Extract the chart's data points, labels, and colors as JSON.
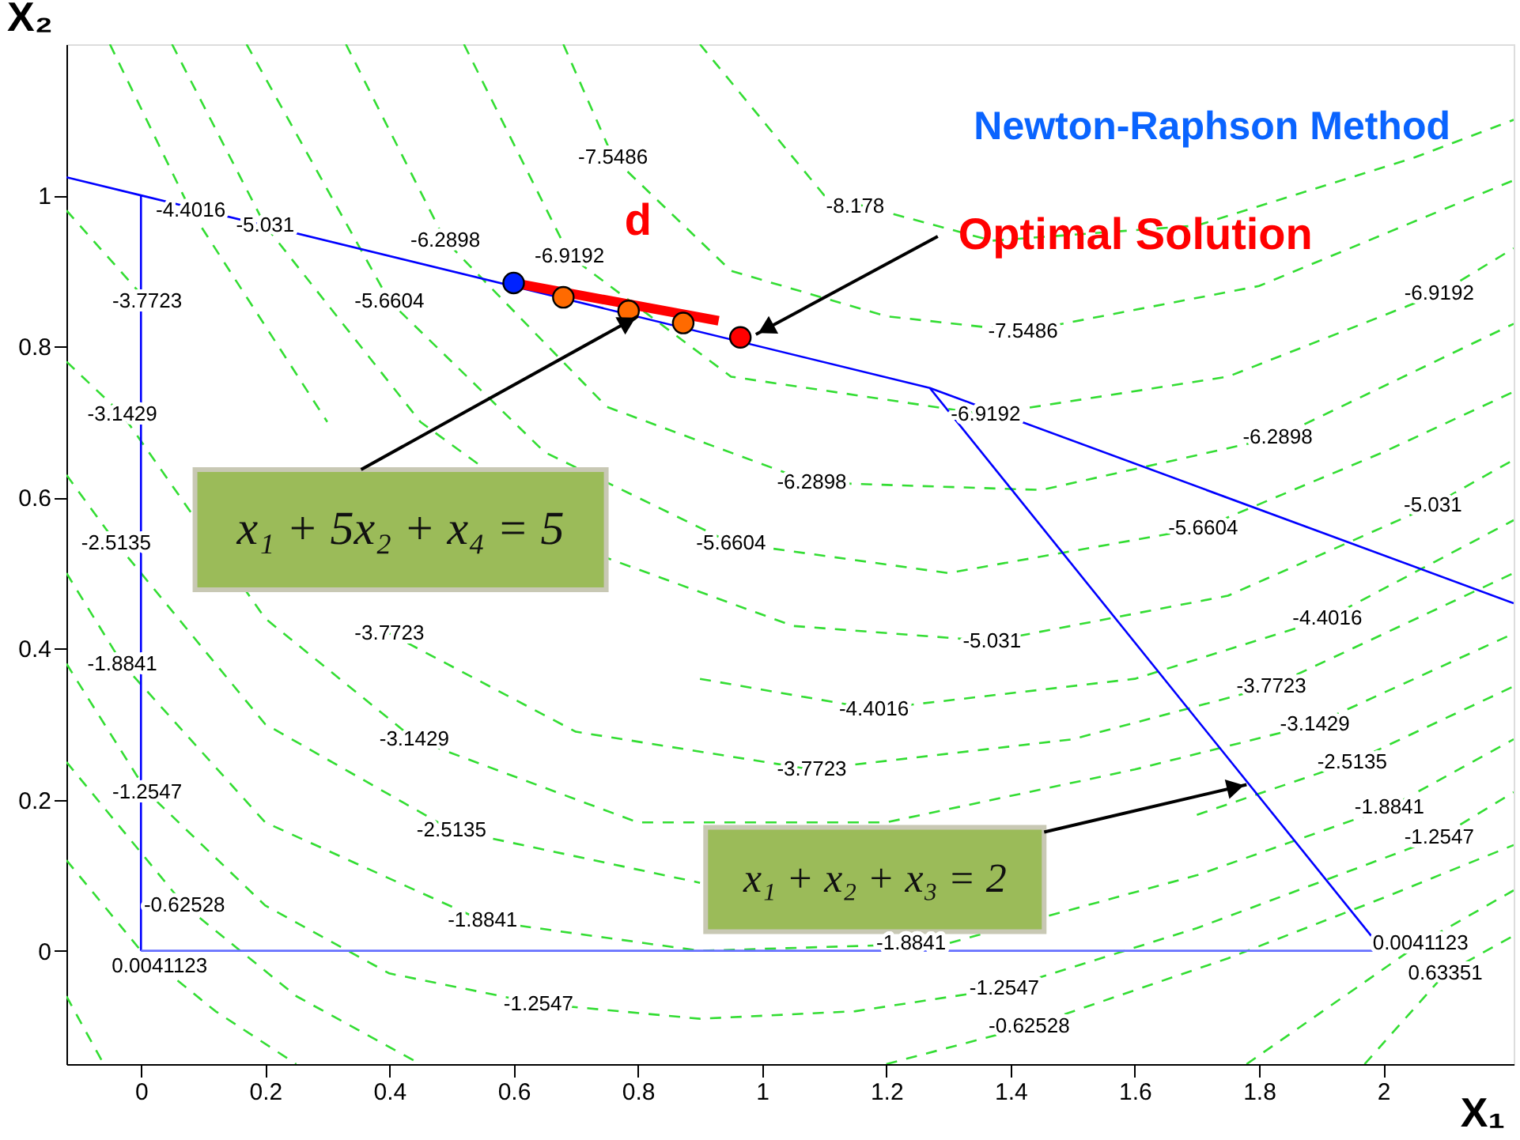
{
  "chart_data": {
    "type": "line",
    "title": "Newton-Raphson Method",
    "xlabel": "X₁",
    "ylabel": "X₂",
    "xlim": [
      -0.12,
      2.21
    ],
    "ylim": [
      -0.15,
      1.2
    ],
    "xticks": [
      0,
      0.2,
      0.4,
      0.6,
      0.8,
      1,
      1.2,
      1.4,
      1.6,
      1.8,
      2
    ],
    "yticks": [
      0,
      0.2,
      0.4,
      0.6,
      0.8,
      1
    ],
    "grid": false,
    "series": [
      {
        "type": "line",
        "color": "#33dd33",
        "line_style": "dashed",
        "x": [
          -0.12,
          -0.06
        ],
        "values": [
          -0.06,
          -0.15
        ]
      },
      {
        "type": "line",
        "color": "#33dd33",
        "line_style": "dashed",
        "x": [
          1.97,
          2.1,
          2.21
        ],
        "values": [
          -0.15,
          -0.03,
          0.02
        ]
      },
      {
        "type": "line",
        "color": "#33dd33",
        "line_style": "dashed",
        "x": [
          -0.12,
          0,
          0.12,
          0.25
        ],
        "values": [
          0.12,
          0,
          -0.08,
          -0.15
        ]
      },
      {
        "type": "line",
        "color": "#33dd33",
        "line_style": "dashed",
        "x": [
          1.78,
          1.92,
          2.06,
          2.21
        ],
        "values": [
          -0.15,
          -0.07,
          0.01,
          0.08
        ]
      },
      {
        "type": "line",
        "color": "#33dd33",
        "line_style": "dashed",
        "x": [
          -0.12,
          0.07,
          0.25,
          0.45
        ],
        "values": [
          0.25,
          0.06,
          -0.06,
          -0.15
        ]
      },
      {
        "type": "line",
        "color": "#33dd33",
        "line_style": "dashed",
        "x": [
          1.2,
          1.43,
          1.75,
          2.0,
          2.21
        ],
        "values": [
          -0.15,
          -0.1,
          -0.01,
          0.07,
          0.14
        ]
      },
      {
        "type": "line",
        "color": "#33dd33",
        "line_style": "dashed",
        "x": [
          -0.12,
          0.01,
          0.2,
          0.4,
          0.64,
          0.9,
          1.15,
          1.39,
          1.7,
          2.09,
          2.21
        ],
        "values": [
          0.38,
          0.21,
          0.06,
          -0.03,
          -0.07,
          -0.09,
          -0.08,
          -0.05,
          0.03,
          0.15,
          0.21
        ]
      },
      {
        "type": "line",
        "color": "#33dd33",
        "line_style": "dashed",
        "x": [
          -0.12,
          -0.03,
          0.2,
          0.55,
          0.9,
          1.3,
          1.7,
          2.01,
          2.21
        ],
        "values": [
          0.5,
          0.38,
          0.17,
          0.04,
          0,
          0.01,
          0.1,
          0.19,
          0.28
        ]
      },
      {
        "type": "line",
        "color": "#33dd33",
        "line_style": "dashed",
        "x": [
          -0.12,
          -0.04,
          0.2,
          0.5,
          0.9,
          1.3,
          1.7,
          1.95,
          2.21
        ],
        "values": [
          0.63,
          0.54,
          0.3,
          0.16,
          0.09,
          null,
          0.18,
          0.25,
          0.35
        ]
      },
      {
        "type": "line",
        "color": "#33dd33",
        "line_style": "dashed",
        "x": [
          -0.12,
          -0.03,
          0.2,
          0.44,
          0.8,
          1.2,
          1.6,
          1.89,
          2.21
        ],
        "values": [
          0.78,
          0.71,
          0.44,
          0.28,
          0.17,
          0.17,
          0.24,
          0.3,
          0.42
        ]
      },
      {
        "type": "line",
        "color": "#33dd33",
        "line_style": "dashed",
        "x": [
          -0.12,
          0.01,
          0.2,
          0.4,
          0.7,
          1.08,
          1.5,
          1.82,
          2.21
        ],
        "values": [
          0.98,
          0.86,
          null,
          0.42,
          0.29,
          0.24,
          0.28,
          0.35,
          0.5
        ]
      },
      {
        "type": "line",
        "color": "#33dd33",
        "line_style": "dashed",
        "x": [
          -0.05,
          0.08,
          0.3,
          0.6,
          0.9,
          1.18,
          1.6,
          1.91,
          2.21
        ],
        "values": [
          1.2,
          0.98,
          0.7,
          null,
          0.36,
          0.32,
          0.36,
          0.44,
          0.57
        ]
      },
      {
        "type": "line",
        "color": "#33dd33",
        "line_style": "dashed",
        "x": [
          0.05,
          0.2,
          0.45,
          0.75,
          1.05,
          1.37,
          1.75,
          2.08,
          2.21
        ],
        "values": [
          1.2,
          0.96,
          0.7,
          0.52,
          0.43,
          0.41,
          0.47,
          0.59,
          0.65
        ]
      },
      {
        "type": "line",
        "color": "#33dd33",
        "line_style": "dashed",
        "x": [
          0.17,
          0.4,
          0.65,
          0.95,
          1.3,
          1.71,
          2.0,
          2.21
        ],
        "values": [
          1.2,
          0.86,
          0.66,
          0.54,
          0.5,
          0.56,
          0.66,
          0.74
        ]
      },
      {
        "type": "line",
        "color": "#33dd33",
        "line_style": "dashed",
        "x": [
          0.33,
          0.49,
          0.75,
          1.08,
          1.45,
          1.83,
          2.21
        ],
        "values": [
          1.2,
          0.94,
          0.72,
          0.62,
          0.61,
          0.68,
          0.83
        ]
      },
      {
        "type": "line",
        "color": "#33dd33",
        "line_style": "dashed",
        "x": [
          0.52,
          0.69,
          0.95,
          1.36,
          1.75,
          2.09,
          2.21
        ],
        "values": [
          1.2,
          0.92,
          0.76,
          0.71,
          0.76,
          0.87,
          0.93
        ]
      },
      {
        "type": "line",
        "color": "#33dd33",
        "line_style": "dashed",
        "x": [
          0.68,
          0.76,
          0.95,
          1.2,
          1.42,
          1.8,
          2.21
        ],
        "values": [
          1.2,
          1.05,
          0.9,
          0.84,
          0.82,
          0.88,
          1.02
        ]
      },
      {
        "type": "line",
        "color": "#33dd33",
        "line_style": "dashed",
        "x": [
          0.9,
          1.1,
          1.37,
          1.7,
          2.05,
          2.21
        ],
        "values": [
          1.2,
          1.0,
          0.94,
          0.96,
          1.05,
          1.1
        ]
      },
      {
        "type": "line",
        "color": "#0000ff",
        "line_style": "solid",
        "x": [
          -0.12,
          0,
          1.27,
          2.21
        ],
        "values": [
          1.024,
          1,
          0.745,
          0.46
        ]
      },
      {
        "type": "line",
        "color": "#0000ff",
        "line_style": "solid",
        "x": [
          1.27,
          2
        ],
        "values": [
          0.745,
          0
        ]
      },
      {
        "type": "line",
        "color": "#0000ff",
        "line_style": "solid",
        "x": [
          0,
          0
        ],
        "values": [
          0,
          1
        ]
      },
      {
        "type": "line",
        "color": "#6670ff",
        "line_style": "solid",
        "x": [
          0,
          2
        ],
        "values": [
          0,
          0
        ]
      },
      {
        "type": "line",
        "color": "#ff0000",
        "line_style": "solid",
        "x": [
          0.6,
          0.93
        ],
        "values": [
          0.884,
          0.834
        ]
      },
      {
        "type": "scatter",
        "color": "#ff6a00",
        "marker": "circle",
        "x": [
          0.68,
          0.785,
          0.873
        ],
        "values": [
          0.865,
          0.847,
          0.831
        ]
      },
      {
        "type": "scatter",
        "color": "#0022ff",
        "marker": "circle",
        "x": [
          0.6
        ],
        "values": [
          0.884
        ]
      },
      {
        "type": "scatter",
        "color": "#ff0000",
        "marker": "circle",
        "x": [
          0.965
        ],
        "values": [
          0.812
        ]
      }
    ],
    "annotations": [
      {
        "text": "Optimal Solution",
        "x": 0.99,
        "y": 0.816
      },
      {
        "text": "x₁ + 5x₂ + x₄ = 5",
        "x": 0.8,
        "y": 0.84
      },
      {
        "text": "x₁ + x₂ + x₃ = 2",
        "x": 1.78,
        "y": 0.22
      },
      "d",
      {
        "text": "0.63351",
        "x": 2.1,
        "y": -0.03
      },
      {
        "text": "0.0041123",
        "x": 0.03,
        "y": -0.02
      },
      {
        "text": "0.0041123",
        "x": 2.06,
        "y": 0.01
      },
      {
        "text": "-0.62528",
        "x": 0.07,
        "y": 0.06
      },
      {
        "text": "-0.62528",
        "x": 1.43,
        "y": -0.1
      },
      {
        "text": "-1.2547",
        "x": 0.01,
        "y": 0.21
      },
      {
        "text": "-1.2547",
        "x": 0.64,
        "y": -0.07
      },
      {
        "text": "-1.2547",
        "x": 1.39,
        "y": -0.05
      },
      {
        "text": "-1.2547",
        "x": 2.09,
        "y": 0.15
      },
      {
        "text": "-1.8841",
        "x": -0.03,
        "y": 0.38
      },
      {
        "text": "-1.8841",
        "x": 0.55,
        "y": 0.04
      },
      {
        "text": "-1.8841",
        "x": 1.24,
        "y": 0.01
      },
      {
        "text": "-1.8841",
        "x": 2.01,
        "y": 0.19
      },
      {
        "text": "-2.5135",
        "x": -0.04,
        "y": 0.54
      },
      {
        "text": "-2.5135",
        "x": 0.5,
        "y": 0.16
      },
      {
        "text": "-2.5135",
        "x": 1.95,
        "y": 0.25
      },
      {
        "text": "-3.1429",
        "x": -0.03,
        "y": 0.71
      },
      {
        "text": "-3.1429",
        "x": 0.44,
        "y": 0.28
      },
      {
        "text": "-3.1429",
        "x": 1.89,
        "y": 0.3
      },
      {
        "text": "-3.7723",
        "x": 0.01,
        "y": 0.86
      },
      {
        "text": "-3.7723",
        "x": 0.4,
        "y": 0.42
      },
      {
        "text": "-3.7723",
        "x": 1.08,
        "y": 0.24
      },
      {
        "text": "-3.7723",
        "x": 1.82,
        "y": 0.35
      },
      {
        "text": "-4.4016",
        "x": 0.08,
        "y": 0.98
      },
      {
        "text": "-4.4016",
        "x": 1.18,
        "y": 0.32
      },
      {
        "text": "-4.4016",
        "x": 1.91,
        "y": 0.44
      },
      {
        "text": "-5.031",
        "x": 0.2,
        "y": 0.96
      },
      {
        "text": "-5.031",
        "x": 1.37,
        "y": 0.41
      },
      {
        "text": "-5.031",
        "x": 2.08,
        "y": 0.59
      },
      {
        "text": "-5.6604",
        "x": 0.4,
        "y": 0.86
      },
      {
        "text": "-5.6604",
        "x": 0.95,
        "y": 0.54
      },
      {
        "text": "-5.6604",
        "x": 1.71,
        "y": 0.56
      },
      {
        "text": "-6.2898",
        "x": 0.49,
        "y": 0.94
      },
      {
        "text": "-6.2898",
        "x": 1.08,
        "y": 0.62
      },
      {
        "text": "-6.2898",
        "x": 1.83,
        "y": 0.68
      },
      {
        "text": "-6.9192",
        "x": 0.69,
        "y": 0.92
      },
      {
        "text": "-6.9192",
        "x": 1.36,
        "y": 0.71
      },
      {
        "text": "-6.9192",
        "x": 2.09,
        "y": 0.87
      },
      {
        "text": "-7.5486",
        "x": 0.76,
        "y": 1.05
      },
      {
        "text": "-7.5486",
        "x": 1.42,
        "y": 0.82
      },
      {
        "text": "-8.178",
        "x": 1.15,
        "y": 0.985
      }
    ]
  }
}
